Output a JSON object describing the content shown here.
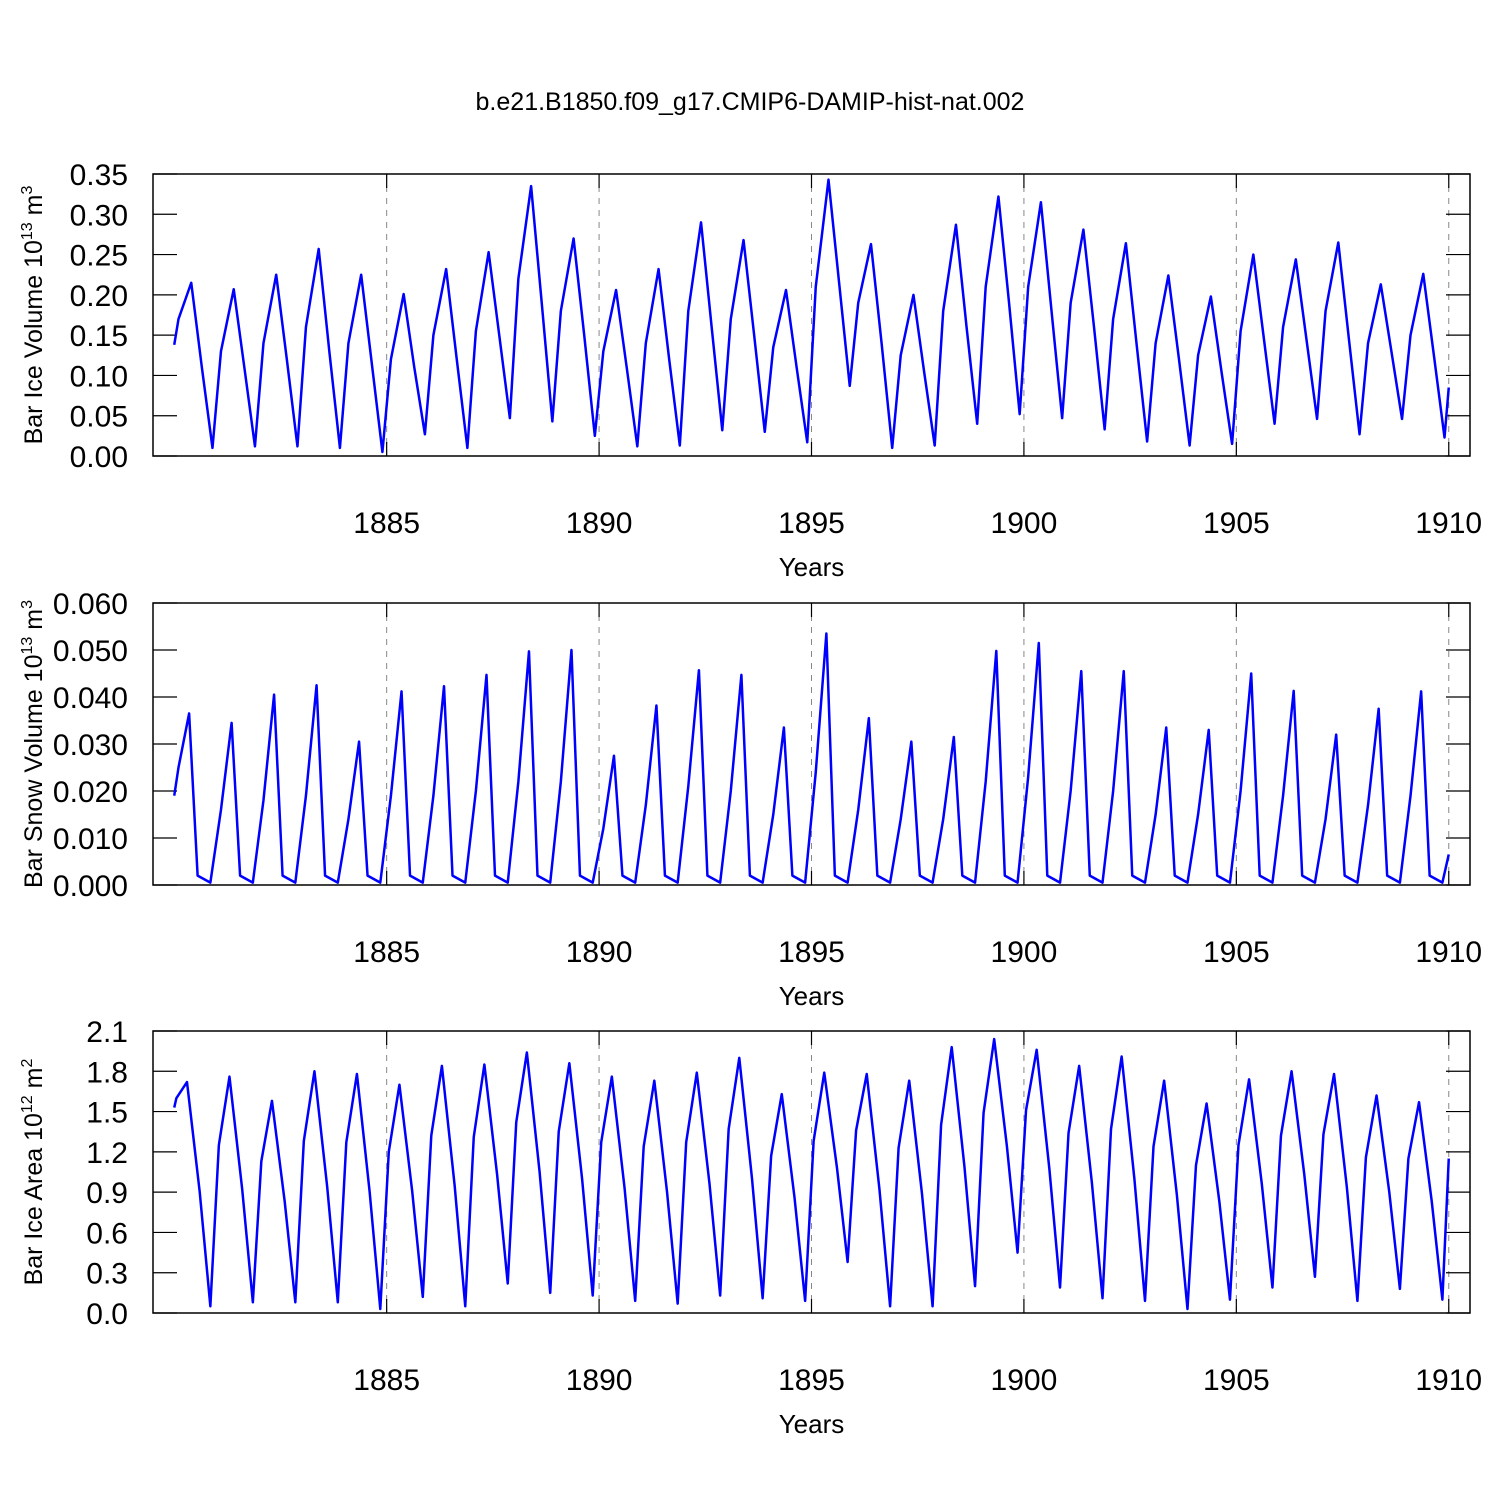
{
  "title": "b.e21.B1850.f09_g17.CMIP6-DAMIP-hist-nat.002",
  "chart_data": [
    {
      "type": "line",
      "color": "#0000ff",
      "grid": true,
      "ylabel": {
        "text": "Bar Ice Volume 10",
        "exp": "13",
        "unit": "m",
        "unit_exp": "3"
      },
      "xlabel": "Years",
      "xlim": [
        1879.5,
        1910.5
      ],
      "xticks": [
        1885,
        1890,
        1895,
        1900,
        1905,
        1910
      ],
      "ylim": [
        0,
        0.35
      ],
      "yticks": [
        {
          "value": 0,
          "label": "0.00"
        },
        0.05,
        {
          "value": 0.1,
          "label": "0.10"
        },
        0.15,
        {
          "value": 0.2,
          "label": "0.20"
        },
        0.25,
        {
          "value": 0.3,
          "label": "0.30"
        },
        0.35
      ],
      "x": [
        1880,
        1880.1,
        1880.4,
        1880.65,
        1880.9,
        1881.1,
        1881.4,
        1881.65,
        1881.9,
        1882.1,
        1882.4,
        1882.65,
        1882.9,
        1883.1,
        1883.4,
        1883.65,
        1883.9,
        1884.1,
        1884.4,
        1884.65,
        1884.9,
        1885.1,
        1885.4,
        1885.65,
        1885.9,
        1886.1,
        1886.4,
        1886.65,
        1886.9,
        1887.1,
        1887.4,
        1887.65,
        1887.9,
        1888.1,
        1888.4,
        1888.65,
        1888.9,
        1889.1,
        1889.4,
        1889.65,
        1889.9,
        1890.1,
        1890.4,
        1890.65,
        1890.9,
        1891.1,
        1891.4,
        1891.65,
        1891.9,
        1892.1,
        1892.4,
        1892.65,
        1892.9,
        1893.1,
        1893.4,
        1893.65,
        1893.9,
        1894.1,
        1894.4,
        1894.65,
        1894.9,
        1895.1,
        1895.4,
        1895.65,
        1895.9,
        1896.1,
        1896.4,
        1896.65,
        1896.9,
        1897.1,
        1897.4,
        1897.65,
        1897.9,
        1898.1,
        1898.4,
        1898.65,
        1898.9,
        1899.1,
        1899.4,
        1899.65,
        1899.9,
        1900.1,
        1900.4,
        1900.65,
        1900.9,
        1901.1,
        1901.4,
        1901.65,
        1901.9,
        1902.1,
        1902.4,
        1902.65,
        1902.9,
        1903.1,
        1903.4,
        1903.65,
        1903.9,
        1904.1,
        1904.4,
        1904.65,
        1904.9,
        1905.1,
        1905.4,
        1905.65,
        1905.9,
        1906.1,
        1906.4,
        1906.65,
        1906.9,
        1907.1,
        1907.4,
        1907.65,
        1907.9,
        1908.1,
        1908.4,
        1908.65,
        1908.9,
        1909.1,
        1909.4,
        1909.65,
        1909.9,
        1910
      ],
      "values": [
        0.138,
        0.17,
        0.215,
        0.11,
        0.01,
        0.13,
        0.207,
        0.11,
        0.012,
        0.14,
        0.225,
        0.12,
        0.012,
        0.16,
        0.257,
        0.13,
        0.01,
        0.14,
        0.225,
        0.115,
        0.005,
        0.12,
        0.201,
        0.11,
        0.027,
        0.15,
        0.232,
        0.12,
        0.01,
        0.155,
        0.253,
        0.15,
        0.047,
        0.22,
        0.335,
        0.19,
        0.043,
        0.18,
        0.27,
        0.15,
        0.025,
        0.13,
        0.206,
        0.11,
        0.012,
        0.14,
        0.232,
        0.12,
        0.013,
        0.18,
        0.29,
        0.16,
        0.032,
        0.17,
        0.268,
        0.15,
        0.03,
        0.135,
        0.206,
        0.11,
        0.017,
        0.21,
        0.343,
        0.215,
        0.087,
        0.19,
        0.263,
        0.14,
        0.01,
        0.125,
        0.2,
        0.105,
        0.013,
        0.18,
        0.287,
        0.16,
        0.04,
        0.21,
        0.322,
        0.19,
        0.052,
        0.21,
        0.315,
        0.18,
        0.047,
        0.19,
        0.281,
        0.16,
        0.033,
        0.17,
        0.264,
        0.14,
        0.018,
        0.14,
        0.224,
        0.12,
        0.013,
        0.125,
        0.198,
        0.105,
        0.015,
        0.155,
        0.25,
        0.145,
        0.04,
        0.16,
        0.244,
        0.145,
        0.046,
        0.18,
        0.265,
        0.145,
        0.027,
        0.14,
        0.213,
        0.13,
        0.046,
        0.15,
        0.226,
        0.125,
        0.023,
        0.085
      ]
    },
    {
      "type": "line",
      "color": "#0000ff",
      "grid": true,
      "ylabel": {
        "text": "Bar Snow Volume 10",
        "exp": "13",
        "unit": "m",
        "unit_exp": "3"
      },
      "xlabel": "Years",
      "xlim": [
        1879.5,
        1910.5
      ],
      "xticks": [
        1885,
        1890,
        1895,
        1900,
        1905,
        1910
      ],
      "ylim": [
        0,
        0.06
      ],
      "yticks": [
        {
          "value": 0,
          "label": "0.000"
        },
        {
          "value": 0.01,
          "label": "0.010"
        },
        {
          "value": 0.02,
          "label": "0.020"
        },
        {
          "value": 0.03,
          "label": "0.030"
        },
        {
          "value": 0.04,
          "label": "0.040"
        },
        {
          "value": 0.05,
          "label": "0.050"
        },
        {
          "value": 0.06,
          "label": "0.060"
        }
      ],
      "x": [
        1880,
        1880.1,
        1880.35,
        1880.55,
        1880.85,
        1881.1,
        1881.35,
        1881.55,
        1881.85,
        1882.1,
        1882.35,
        1882.55,
        1882.85,
        1883.1,
        1883.35,
        1883.55,
        1883.85,
        1884.1,
        1884.35,
        1884.55,
        1884.85,
        1885.1,
        1885.35,
        1885.55,
        1885.85,
        1886.1,
        1886.35,
        1886.55,
        1886.85,
        1887.1,
        1887.35,
        1887.55,
        1887.85,
        1888.1,
        1888.35,
        1888.55,
        1888.85,
        1889.1,
        1889.35,
        1889.55,
        1889.85,
        1890.1,
        1890.35,
        1890.55,
        1890.85,
        1891.1,
        1891.35,
        1891.55,
        1891.85,
        1892.1,
        1892.35,
        1892.55,
        1892.85,
        1893.1,
        1893.35,
        1893.55,
        1893.85,
        1894.1,
        1894.35,
        1894.55,
        1894.85,
        1895.1,
        1895.35,
        1895.55,
        1895.85,
        1896.1,
        1896.35,
        1896.55,
        1896.85,
        1897.1,
        1897.35,
        1897.55,
        1897.85,
        1898.1,
        1898.35,
        1898.55,
        1898.85,
        1899.1,
        1899.35,
        1899.55,
        1899.85,
        1900.1,
        1900.35,
        1900.55,
        1900.85,
        1901.1,
        1901.35,
        1901.55,
        1901.85,
        1902.1,
        1902.35,
        1902.55,
        1902.85,
        1903.1,
        1903.35,
        1903.55,
        1903.85,
        1904.1,
        1904.35,
        1904.55,
        1904.85,
        1905.1,
        1905.35,
        1905.55,
        1905.85,
        1906.1,
        1906.35,
        1906.55,
        1906.85,
        1907.1,
        1907.35,
        1907.55,
        1907.85,
        1908.1,
        1908.35,
        1908.55,
        1908.85,
        1909.1,
        1909.35,
        1909.55,
        1909.85,
        1910
      ],
      "values": [
        0.019,
        0.025,
        0.0365,
        0.002,
        0.0005,
        0.016,
        0.0345,
        0.002,
        0.0005,
        0.018,
        0.0405,
        0.002,
        0.0005,
        0.019,
        0.0425,
        0.002,
        0.0005,
        0.014,
        0.0305,
        0.002,
        0.0005,
        0.019,
        0.0412,
        0.002,
        0.0005,
        0.019,
        0.0423,
        0.002,
        0.0005,
        0.02,
        0.0447,
        0.002,
        0.0005,
        0.022,
        0.0497,
        0.002,
        0.0005,
        0.022,
        0.05,
        0.002,
        0.0005,
        0.012,
        0.0275,
        0.002,
        0.0005,
        0.017,
        0.0382,
        0.002,
        0.0005,
        0.021,
        0.0457,
        0.002,
        0.0005,
        0.02,
        0.0447,
        0.002,
        0.0005,
        0.015,
        0.0335,
        0.002,
        0.0005,
        0.024,
        0.0535,
        0.002,
        0.0005,
        0.016,
        0.0355,
        0.002,
        0.0005,
        0.014,
        0.0305,
        0.002,
        0.0005,
        0.014,
        0.0315,
        0.002,
        0.0005,
        0.022,
        0.0498,
        0.002,
        0.0005,
        0.023,
        0.0515,
        0.002,
        0.0005,
        0.02,
        0.0455,
        0.002,
        0.0005,
        0.02,
        0.0455,
        0.002,
        0.0005,
        0.015,
        0.0335,
        0.002,
        0.0005,
        0.015,
        0.033,
        0.002,
        0.0005,
        0.02,
        0.045,
        0.002,
        0.0005,
        0.019,
        0.0413,
        0.002,
        0.0005,
        0.014,
        0.032,
        0.002,
        0.0005,
        0.017,
        0.0375,
        0.002,
        0.0005,
        0.019,
        0.0412,
        0.002,
        0.0005,
        0.0065
      ]
    },
    {
      "type": "line",
      "color": "#0000ff",
      "grid": true,
      "ylabel": {
        "text": "Bar Ice Area 10",
        "exp": "12",
        "unit": "m",
        "unit_exp": "2"
      },
      "xlabel": "Years",
      "xlim": [
        1879.5,
        1910.5
      ],
      "xticks": [
        1885,
        1890,
        1895,
        1900,
        1905,
        1910
      ],
      "ylim": [
        0,
        2.1
      ],
      "yticks": [
        {
          "value": 0,
          "label": "0.0"
        },
        0.3,
        0.6,
        0.9,
        1.2,
        1.5,
        1.8,
        2.1
      ],
      "x": [
        1880,
        1880.05,
        1880.3,
        1880.6,
        1880.85,
        1881.05,
        1881.3,
        1881.6,
        1881.85,
        1882.05,
        1882.3,
        1882.6,
        1882.85,
        1883.05,
        1883.3,
        1883.6,
        1883.85,
        1884.05,
        1884.3,
        1884.6,
        1884.85,
        1885.05,
        1885.3,
        1885.6,
        1885.85,
        1886.05,
        1886.3,
        1886.6,
        1886.85,
        1887.05,
        1887.3,
        1887.6,
        1887.85,
        1888.05,
        1888.3,
        1888.6,
        1888.85,
        1889.05,
        1889.3,
        1889.6,
        1889.85,
        1890.05,
        1890.3,
        1890.6,
        1890.85,
        1891.05,
        1891.3,
        1891.6,
        1891.85,
        1892.05,
        1892.3,
        1892.6,
        1892.85,
        1893.05,
        1893.3,
        1893.6,
        1893.85,
        1894.05,
        1894.3,
        1894.6,
        1894.85,
        1895.05,
        1895.3,
        1895.6,
        1895.85,
        1896.05,
        1896.3,
        1896.6,
        1896.85,
        1897.05,
        1897.3,
        1897.6,
        1897.85,
        1898.05,
        1898.3,
        1898.6,
        1898.85,
        1899.05,
        1899.3,
        1899.6,
        1899.85,
        1900.05,
        1900.3,
        1900.6,
        1900.85,
        1901.05,
        1901.3,
        1901.6,
        1901.85,
        1902.05,
        1902.3,
        1902.6,
        1902.85,
        1903.05,
        1903.3,
        1903.6,
        1903.85,
        1904.05,
        1904.3,
        1904.6,
        1904.85,
        1905.05,
        1905.3,
        1905.6,
        1905.85,
        1906.05,
        1906.3,
        1906.6,
        1906.85,
        1907.05,
        1907.3,
        1907.6,
        1907.85,
        1908.05,
        1908.3,
        1908.6,
        1908.85,
        1909.05,
        1909.3,
        1909.6,
        1909.85,
        1910
      ],
      "values": [
        1.53,
        1.6,
        1.72,
        0.9,
        0.05,
        1.25,
        1.76,
        0.92,
        0.08,
        1.13,
        1.58,
        0.83,
        0.08,
        1.28,
        1.8,
        0.94,
        0.08,
        1.27,
        1.78,
        0.9,
        0.03,
        1.2,
        1.7,
        0.91,
        0.12,
        1.32,
        1.84,
        0.95,
        0.05,
        1.31,
        1.85,
        1.03,
        0.22,
        1.42,
        1.94,
        1.05,
        0.15,
        1.35,
        1.86,
        1.0,
        0.13,
        1.27,
        1.76,
        0.93,
        0.09,
        1.24,
        1.73,
        0.9,
        0.07,
        1.27,
        1.79,
        0.96,
        0.13,
        1.37,
        1.9,
        1.0,
        0.11,
        1.17,
        1.63,
        0.86,
        0.09,
        1.28,
        1.79,
        1.08,
        0.38,
        1.36,
        1.78,
        0.92,
        0.05,
        1.23,
        1.73,
        0.89,
        0.05,
        1.4,
        1.98,
        1.09,
        0.2,
        1.49,
        2.04,
        1.24,
        0.45,
        1.51,
        1.96,
        1.07,
        0.19,
        1.34,
        1.84,
        0.97,
        0.11,
        1.37,
        1.91,
        1.0,
        0.09,
        1.24,
        1.73,
        0.88,
        0.03,
        1.1,
        1.56,
        0.83,
        0.1,
        1.25,
        1.74,
        0.96,
        0.19,
        1.32,
        1.8,
        1.03,
        0.27,
        1.33,
        1.78,
        0.94,
        0.09,
        1.16,
        1.62,
        0.9,
        0.18,
        1.15,
        1.57,
        0.83,
        0.1,
        1.15
      ]
    }
  ]
}
